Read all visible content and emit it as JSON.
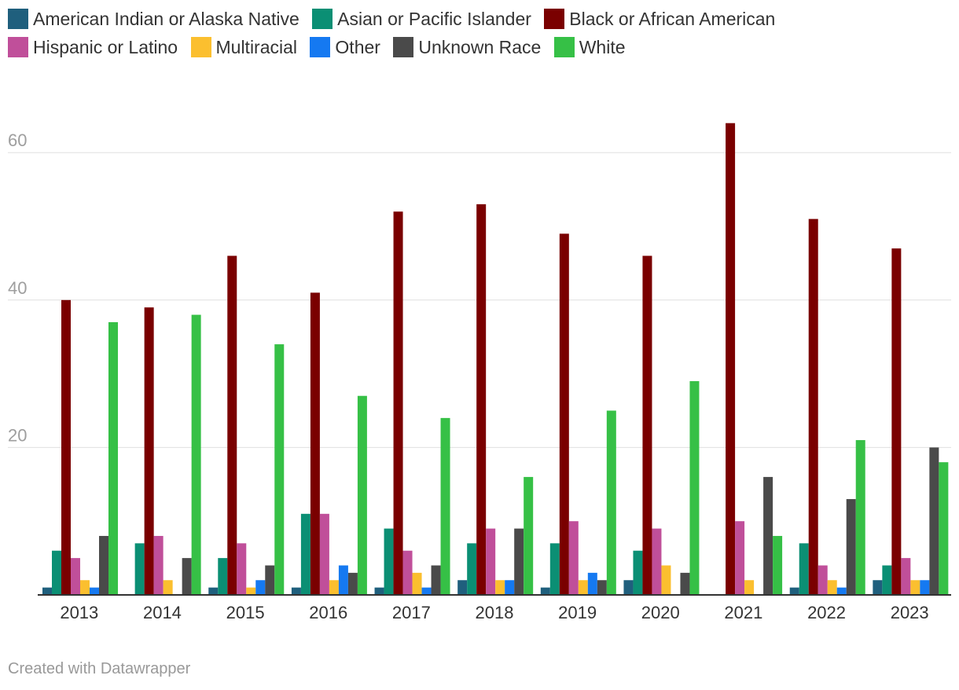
{
  "credit": "Created with Datawrapper",
  "chart_data": {
    "type": "bar",
    "title": "",
    "xlabel": "",
    "ylabel": "",
    "ylim": [
      0,
      66
    ],
    "yticks": [
      20,
      40,
      60
    ],
    "grid": true,
    "legend_position": "top",
    "categories": [
      "2013",
      "2014",
      "2015",
      "2016",
      "2017",
      "2018",
      "2019",
      "2020",
      "2021",
      "2022",
      "2023"
    ],
    "series": [
      {
        "name": "American Indian or Alaska Native",
        "color": "#1f5f7d",
        "values": [
          1,
          0,
          1,
          1,
          1,
          2,
          1,
          2,
          0,
          1,
          2
        ]
      },
      {
        "name": "Asian or Pacific Islander",
        "color": "#0b8f74",
        "values": [
          6,
          7,
          5,
          11,
          9,
          7,
          7,
          6,
          0,
          7,
          4
        ]
      },
      {
        "name": "Black or African American",
        "color": "#7a0000",
        "values": [
          40,
          39,
          46,
          41,
          52,
          53,
          49,
          46,
          64,
          51,
          47
        ]
      },
      {
        "name": "Hispanic or Latino",
        "color": "#c04f9a",
        "values": [
          5,
          8,
          7,
          11,
          6,
          9,
          10,
          9,
          10,
          4,
          5
        ]
      },
      {
        "name": "Multiracial",
        "color": "#fbbf2f",
        "values": [
          2,
          2,
          1,
          2,
          3,
          2,
          2,
          4,
          2,
          2,
          2
        ]
      },
      {
        "name": "Other",
        "color": "#1579f1",
        "values": [
          1,
          0,
          2,
          4,
          1,
          2,
          3,
          0,
          0,
          1,
          2
        ]
      },
      {
        "name": "Unknown Race",
        "color": "#4a4a4a",
        "values": [
          8,
          5,
          4,
          3,
          4,
          9,
          2,
          3,
          16,
          13,
          20
        ]
      },
      {
        "name": "White",
        "color": "#36c046",
        "values": [
          37,
          38,
          34,
          27,
          24,
          16,
          25,
          29,
          8,
          21,
          18
        ]
      }
    ]
  }
}
